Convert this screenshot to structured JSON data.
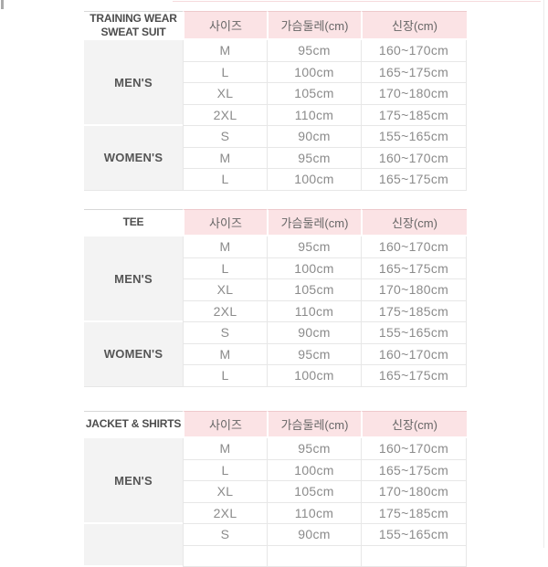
{
  "colors": {
    "header_pink_bg": "#fbe3e5",
    "header_pink_border": "#eec9cc",
    "group_label_bg": "#f3f3f3",
    "grid_border": "#e7e7e7",
    "category_text": "#4d4d4d",
    "data_text": "#8b8b8b"
  },
  "tables": [
    {
      "category_lines": [
        "TRAINING WEAR",
        "SWEAT SUIT"
      ],
      "columns": [
        "사이즈",
        "가슴둘레(cm)",
        "신장(cm)"
      ],
      "groups": [
        {
          "label": "MEN'S",
          "rows": [
            [
              "M",
              "95cm",
              "160~170cm"
            ],
            [
              "L",
              "100cm",
              "165~175cm"
            ],
            [
              "XL",
              "105cm",
              "170~180cm"
            ],
            [
              "2XL",
              "110cm",
              "175~185cm"
            ]
          ]
        },
        {
          "label": "WOMEN'S",
          "rows": [
            [
              "S",
              "90cm",
              "155~165cm"
            ],
            [
              "M",
              "95cm",
              "160~170cm"
            ],
            [
              "L",
              "100cm",
              "165~175cm"
            ]
          ]
        }
      ]
    },
    {
      "category_lines": [
        "TEE"
      ],
      "columns": [
        "사이즈",
        "가슴둘레(cm)",
        "신장(cm)"
      ],
      "groups": [
        {
          "label": "MEN'S",
          "rows": [
            [
              "M",
              "95cm",
              "160~170cm"
            ],
            [
              "L",
              "100cm",
              "165~175cm"
            ],
            [
              "XL",
              "105cm",
              "170~180cm"
            ],
            [
              "2XL",
              "110cm",
              "175~185cm"
            ]
          ]
        },
        {
          "label": "WOMEN'S",
          "rows": [
            [
              "S",
              "90cm",
              "155~165cm"
            ],
            [
              "M",
              "95cm",
              "160~170cm"
            ],
            [
              "L",
              "100cm",
              "165~175cm"
            ]
          ]
        }
      ]
    },
    {
      "category_lines": [
        "JACKET & SHIRTS"
      ],
      "columns": [
        "사이즈",
        "가슴둘레(cm)",
        "신장(cm)"
      ],
      "groups": [
        {
          "label": "MEN'S",
          "rows": [
            [
              "M",
              "95cm",
              "160~170cm"
            ],
            [
              "L",
              "100cm",
              "165~175cm"
            ],
            [
              "XL",
              "105cm",
              "170~180cm"
            ],
            [
              "2XL",
              "110cm",
              "175~185cm"
            ]
          ]
        },
        {
          "label": "",
          "clipped": true,
          "rows": [
            [
              "S",
              "90cm",
              "155~165cm"
            ]
          ]
        }
      ]
    }
  ]
}
